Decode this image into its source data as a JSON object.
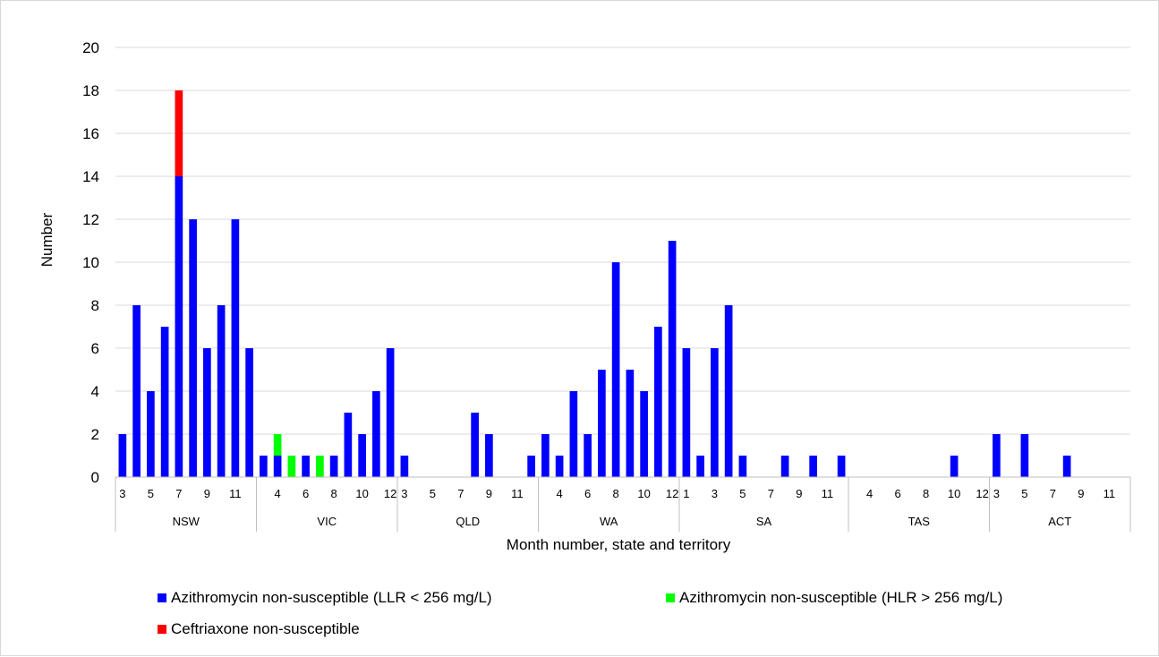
{
  "chart_data": {
    "type": "bar",
    "stacked": true,
    "title": "",
    "xlabel": "Month number, state and territory",
    "ylabel": "Number",
    "ylim": [
      0,
      20
    ],
    "ytick_step": 2,
    "grid": "horizontal",
    "legend_position": "bottom",
    "groups": [
      {
        "name": "NSW",
        "months": [
          3,
          4,
          5,
          6,
          7,
          8,
          9,
          10,
          11,
          12
        ],
        "tick_labels": [
          "3",
          "5",
          "7",
          "9",
          "11"
        ]
      },
      {
        "name": "VIC",
        "months": [
          3,
          4,
          5,
          6,
          7,
          8,
          9,
          10,
          11,
          12
        ],
        "tick_labels": [
          "4",
          "6",
          "8",
          "10",
          "12"
        ]
      },
      {
        "name": "QLD",
        "months": [
          3,
          4,
          5,
          6,
          7,
          8,
          9,
          10,
          11,
          12
        ],
        "tick_labels": [
          "3",
          "5",
          "7",
          "9",
          "11"
        ]
      },
      {
        "name": "WA",
        "months": [
          3,
          4,
          5,
          6,
          7,
          8,
          9,
          10,
          11,
          12
        ],
        "tick_labels": [
          "4",
          "6",
          "8",
          "10",
          "12"
        ]
      },
      {
        "name": "SA",
        "months": [
          1,
          2,
          3,
          4,
          5,
          6,
          7,
          8,
          9,
          10,
          11,
          12
        ],
        "tick_labels": [
          "1",
          "3",
          "5",
          "7",
          "9",
          "11"
        ]
      },
      {
        "name": "TAS",
        "months": [
          3,
          4,
          5,
          6,
          7,
          8,
          9,
          10,
          11,
          12
        ],
        "tick_labels": [
          "4",
          "6",
          "8",
          "10",
          "12"
        ]
      },
      {
        "name": "ACT",
        "months": [
          3,
          4,
          5,
          6,
          7,
          8,
          9,
          10,
          11,
          12
        ],
        "tick_labels": [
          "3",
          "5",
          "7",
          "9",
          "11"
        ]
      }
    ],
    "series": [
      {
        "name": "Azithromycin non-susceptible (LLR < 256 mg/L)",
        "color": "#0000ff",
        "values": [
          [
            2,
            8,
            4,
            7,
            14,
            12,
            6,
            8,
            12,
            6
          ],
          [
            1,
            1,
            0,
            1,
            0,
            1,
            3,
            2,
            4,
            6
          ],
          [
            1,
            0,
            0,
            0,
            0,
            3,
            2,
            0,
            0,
            1
          ],
          [
            2,
            1,
            4,
            2,
            5,
            10,
            5,
            4,
            7,
            11
          ],
          [
            6,
            1,
            6,
            8,
            1,
            0,
            0,
            1,
            0,
            1,
            0,
            1
          ],
          [
            0,
            0,
            0,
            0,
            0,
            0,
            0,
            1,
            0,
            0
          ],
          [
            2,
            0,
            2,
            0,
            0,
            1,
            0,
            0,
            0,
            0
          ]
        ]
      },
      {
        "name": "Azithromycin non-susceptible (HLR > 256 mg/L)",
        "color": "#00ff00",
        "values": [
          [
            0,
            0,
            0,
            0,
            0,
            0,
            0,
            0,
            0,
            0
          ],
          [
            0,
            1,
            1,
            0,
            1,
            0,
            0,
            0,
            0,
            0
          ],
          [
            0,
            0,
            0,
            0,
            0,
            0,
            0,
            0,
            0,
            0
          ],
          [
            0,
            0,
            0,
            0,
            0,
            0,
            0,
            0,
            0,
            0
          ],
          [
            0,
            0,
            0,
            0,
            0,
            0,
            0,
            0,
            0,
            0,
            0,
            0
          ],
          [
            0,
            0,
            0,
            0,
            0,
            0,
            0,
            0,
            0,
            0
          ],
          [
            0,
            0,
            0,
            0,
            0,
            0,
            0,
            0,
            0,
            0
          ]
        ]
      },
      {
        "name": "Ceftriaxone non-susceptible",
        "color": "#ff0000",
        "values": [
          [
            0,
            0,
            0,
            0,
            4,
            0,
            0,
            0,
            0,
            0
          ],
          [
            0,
            0,
            0,
            0,
            0,
            0,
            0,
            0,
            0,
            0
          ],
          [
            0,
            0,
            0,
            0,
            0,
            0,
            0,
            0,
            0,
            0
          ],
          [
            0,
            0,
            0,
            0,
            0,
            0,
            0,
            0,
            0,
            0
          ],
          [
            0,
            0,
            0,
            0,
            0,
            0,
            0,
            0,
            0,
            0,
            0,
            0
          ],
          [
            0,
            0,
            0,
            0,
            0,
            0,
            0,
            0,
            0,
            0
          ],
          [
            0,
            0,
            0,
            0,
            0,
            0,
            0,
            0,
            0,
            0
          ]
        ]
      }
    ]
  }
}
